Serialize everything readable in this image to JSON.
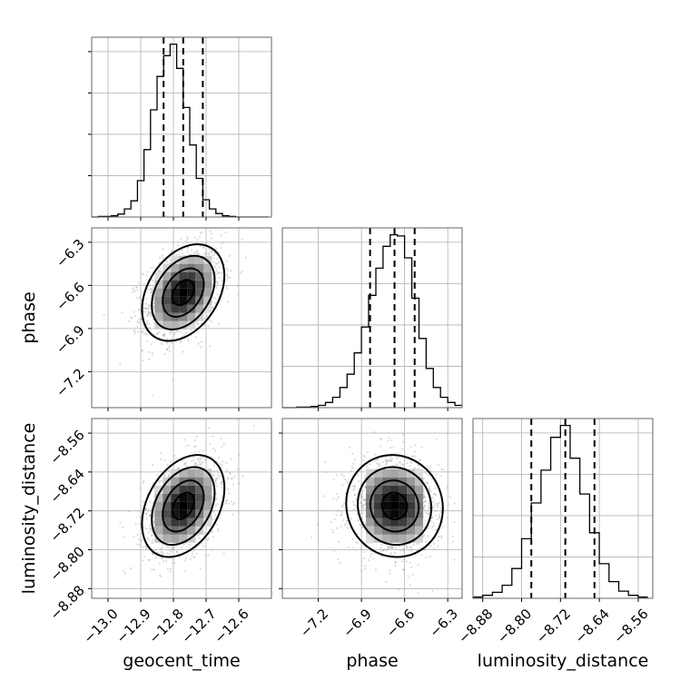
{
  "chart_data": {
    "type": "corner",
    "parameters": [
      {
        "name": "geocent_time",
        "xlabel": "geocent_time",
        "range": [
          -13.05,
          -12.5
        ],
        "ticks": [
          -13.0,
          -12.9,
          -12.8,
          -12.7,
          -12.6
        ],
        "tick_labels": [
          "−13.0",
          "−12.9",
          "−12.8",
          "−12.7",
          "−12.6"
        ],
        "quantiles": [
          -12.83,
          -12.77,
          -12.71
        ],
        "hist": {
          "edges": [
            -13.05,
            -13.03,
            -13.01,
            -12.99,
            -12.97,
            -12.95,
            -12.93,
            -12.91,
            -12.89,
            -12.87,
            -12.85,
            -12.83,
            -12.81,
            -12.79,
            -12.77,
            -12.75,
            -12.73,
            -12.71,
            -12.69,
            -12.67,
            -12.65,
            -12.63,
            -12.61,
            -12.59,
            -12.57,
            -12.55,
            -12.53,
            -12.51
          ],
          "counts": [
            0,
            1,
            1,
            2,
            5,
            14,
            28,
            63,
            117,
            186,
            244,
            280,
            300,
            258,
            190,
            125,
            67,
            30,
            14,
            6,
            2,
            1,
            0,
            0,
            0,
            0,
            0
          ]
        }
      },
      {
        "name": "phase",
        "xlabel": "phase",
        "ylabel": "phase",
        "range": [
          -7.45,
          -6.2
        ],
        "ticks": [
          -7.2,
          -6.9,
          -6.6,
          -6.3
        ],
        "tick_labels": [
          "−7.2",
          "−6.9",
          "−6.6",
          "−6.3"
        ],
        "quantiles": [
          -6.84,
          -6.67,
          -6.53
        ],
        "hist": {
          "edges": [
            -7.45,
            -7.4,
            -7.35,
            -7.3,
            -7.25,
            -7.2,
            -7.15,
            -7.1,
            -7.05,
            -7.0,
            -6.95,
            -6.9,
            -6.85,
            -6.8,
            -6.75,
            -6.7,
            -6.65,
            -6.6,
            -6.55,
            -6.5,
            -6.45,
            -6.4,
            -6.35,
            -6.3,
            -6.25,
            -6.2
          ],
          "counts": [
            0,
            0,
            1,
            1,
            2,
            4,
            9,
            18,
            35,
            58,
            95,
            140,
            195,
            242,
            280,
            300,
            298,
            260,
            190,
            120,
            68,
            35,
            18,
            9,
            4
          ]
        }
      },
      {
        "name": "luminosity_distance",
        "xlabel": "luminosity_distance",
        "ylabel": "luminosity_distance",
        "range": [
          -8.9,
          -8.53
        ],
        "ticks": [
          -8.88,
          -8.8,
          -8.72,
          -8.64,
          -8.56
        ],
        "tick_labels": [
          "−8.88",
          "−8.80",
          "−8.72",
          "−8.64",
          "−8.56"
        ],
        "quantiles": [
          -8.78,
          -8.71,
          -8.65
        ],
        "hist": {
          "edges": [
            -8.9,
            -8.88,
            -8.86,
            -8.84,
            -8.82,
            -8.8,
            -8.78,
            -8.76,
            -8.74,
            -8.72,
            -8.7,
            -8.68,
            -8.66,
            -8.64,
            -8.62,
            -8.6,
            -8.58,
            -8.56,
            -8.54
          ],
          "counts": [
            2,
            5,
            10,
            22,
            50,
            100,
            160,
            215,
            270,
            290,
            235,
            175,
            110,
            58,
            28,
            12,
            5,
            2
          ]
        }
      }
    ],
    "pairs": [
      {
        "x": "geocent_time",
        "y": "phase",
        "center": [
          -12.77,
          -6.65
        ],
        "sigma": [
          0.06,
          0.16
        ],
        "rho": 0.35
      },
      {
        "x": "geocent_time",
        "y": "luminosity_distance",
        "center": [
          -12.77,
          -8.71
        ],
        "sigma": [
          0.06,
          0.05
        ],
        "rho": 0.35
      },
      {
        "x": "phase",
        "y": "luminosity_distance",
        "center": [
          -6.67,
          -8.71
        ],
        "sigma": [
          0.16,
          0.05
        ],
        "rho": -0.05
      }
    ],
    "grid": true,
    "title": ""
  }
}
